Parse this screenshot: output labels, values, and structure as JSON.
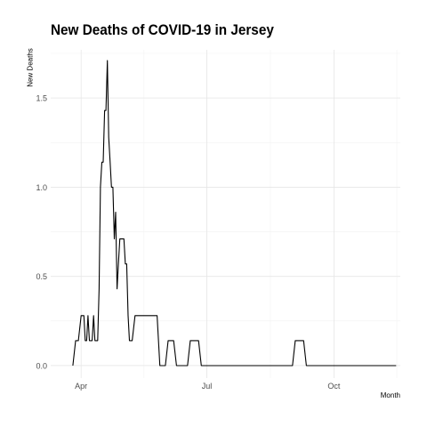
{
  "chart_data": {
    "type": "line",
    "title": "New Deaths of COVID-19 in Jersey",
    "xlabel": "Month",
    "ylabel": "New Deaths",
    "x_tick_labels": [
      "Apr",
      "Jul",
      "Oct"
    ],
    "x_tick_values": [
      "2020-04-01",
      "2020-07-01",
      "2020-10-01"
    ],
    "y_tick_labels": [
      "0.0",
      "0.5",
      "1.0",
      "1.5"
    ],
    "y_tick_values": [
      0,
      0.5,
      1.0,
      1.5
    ],
    "xlim": [
      "2020-03-10",
      "2020-11-18"
    ],
    "ylim": [
      -0.07,
      1.77
    ],
    "grid": true,
    "line_color": "#000000",
    "series": [
      {
        "x": [
          "2020-03-26",
          "2020-03-28",
          "2020-03-30",
          "2020-04-01",
          "2020-04-02",
          "2020-04-03",
          "2020-04-04",
          "2020-04-05",
          "2020-04-06",
          "2020-04-07",
          "2020-04-08",
          "2020-04-09",
          "2020-04-10",
          "2020-04-11",
          "2020-04-12",
          "2020-04-13",
          "2020-04-14",
          "2020-04-15",
          "2020-04-16",
          "2020-04-17",
          "2020-04-18",
          "2020-04-19",
          "2020-04-20",
          "2020-04-21",
          "2020-04-22",
          "2020-04-23",
          "2020-04-24",
          "2020-04-25",
          "2020-04-26",
          "2020-04-27",
          "2020-04-28",
          "2020-04-29",
          "2020-04-30",
          "2020-05-01",
          "2020-05-02",
          "2020-05-03",
          "2020-05-04",
          "2020-05-05",
          "2020-05-06",
          "2020-05-08",
          "2020-05-10",
          "2020-05-12",
          "2020-05-14",
          "2020-05-16",
          "2020-05-18",
          "2020-05-20",
          "2020-05-22",
          "2020-05-24",
          "2020-05-26",
          "2020-05-28",
          "2020-05-30",
          "2020-06-01",
          "2020-06-03",
          "2020-06-05",
          "2020-06-07",
          "2020-06-09",
          "2020-06-11",
          "2020-06-13",
          "2020-06-15",
          "2020-06-17",
          "2020-06-19",
          "2020-06-21",
          "2020-06-23",
          "2020-06-25",
          "2020-06-27",
          "2020-06-29",
          "2020-07-01",
          "2020-08-01",
          "2020-09-01",
          "2020-09-03",
          "2020-09-05",
          "2020-09-07",
          "2020-09-09",
          "2020-09-11",
          "2020-10-01",
          "2020-11-01",
          "2020-11-15"
        ],
        "y": [
          0,
          0.14,
          0.14,
          0.28,
          0.28,
          0.28,
          0.14,
          0.14,
          0.28,
          0.14,
          0.14,
          0.14,
          0.28,
          0.14,
          0.14,
          0.14,
          0.43,
          1.0,
          1.14,
          1.14,
          1.43,
          1.43,
          1.71,
          1.28,
          1.14,
          1.0,
          1.0,
          0.71,
          0.86,
          0.43,
          0.57,
          0.71,
          0.71,
          0.71,
          0.71,
          0.57,
          0.57,
          0.28,
          0.14,
          0.14,
          0.28,
          0.28,
          0.28,
          0.28,
          0.28,
          0.28,
          0.28,
          0.28,
          0.28,
          0,
          0,
          0,
          0.14,
          0.14,
          0.14,
          0,
          0,
          0,
          0,
          0,
          0.14,
          0.14,
          0.14,
          0.14,
          0,
          0,
          0,
          0,
          0,
          0.14,
          0.14,
          0.14,
          0.14,
          0,
          0,
          0,
          0
        ]
      }
    ]
  }
}
